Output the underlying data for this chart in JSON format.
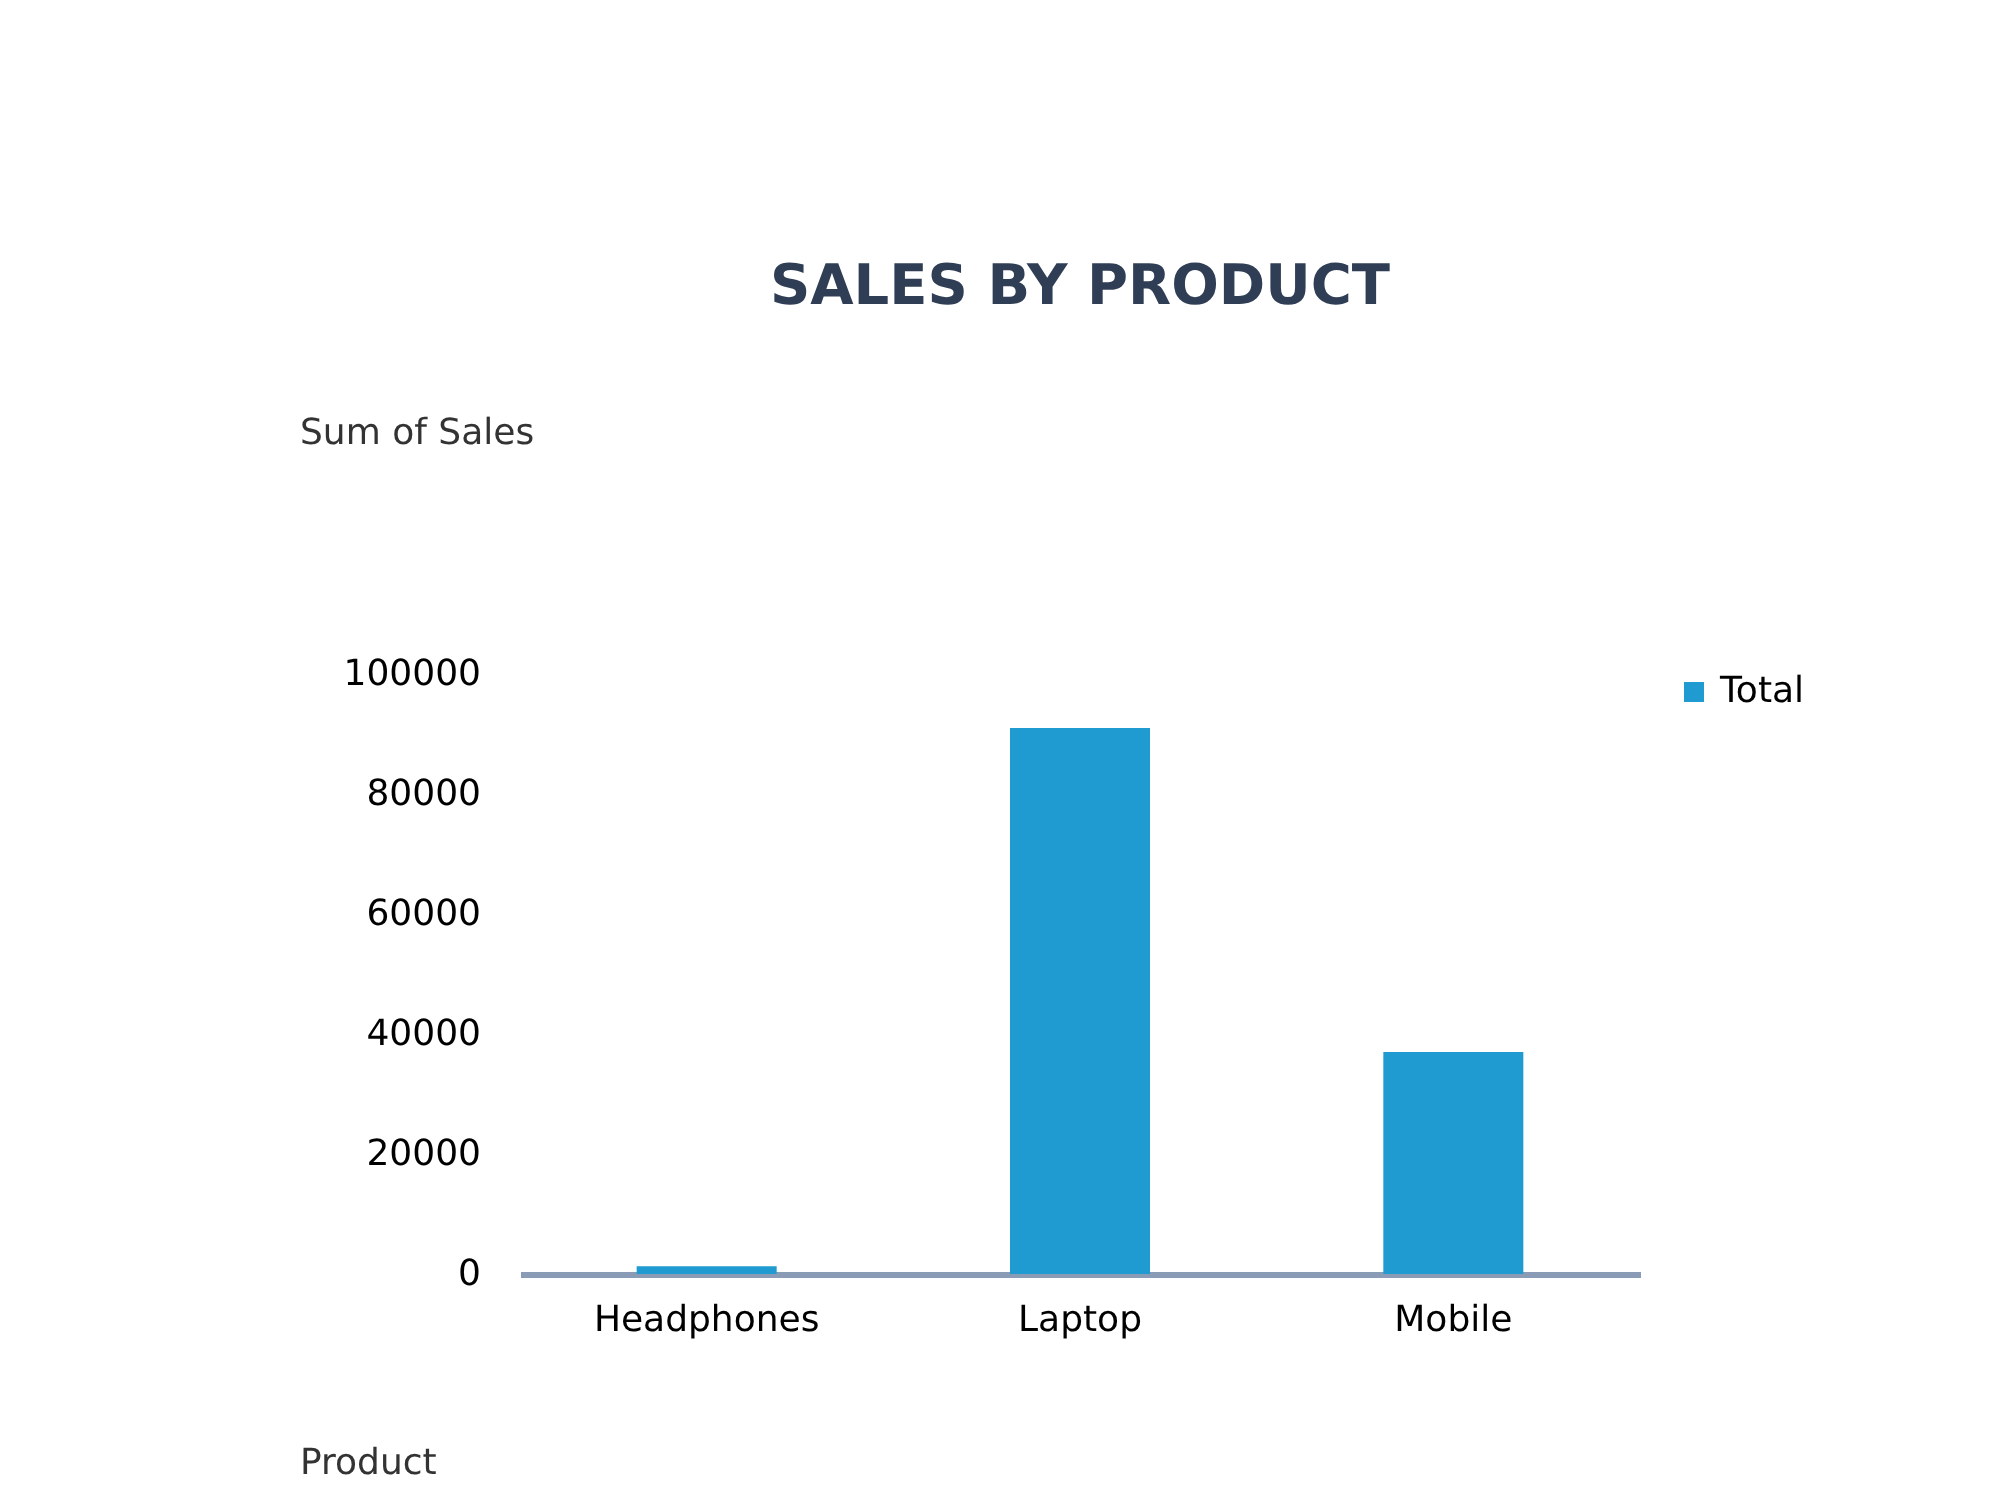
{
  "chart_data": {
    "type": "bar",
    "title": "SALES BY PRODUCT",
    "categories": [
      "Headphones",
      "Laptop",
      "Mobile"
    ],
    "series": [
      {
        "name": "Total",
        "color": "#1f9bd1",
        "values": [
          1300,
          91000,
          37000
        ]
      }
    ],
    "ylim": [
      0,
      100000
    ],
    "yticks": [
      0,
      20000,
      40000,
      60000,
      80000,
      100000
    ],
    "grid": false,
    "legend": "right",
    "annotations": [
      "Sum of Sales",
      "Product"
    ]
  }
}
